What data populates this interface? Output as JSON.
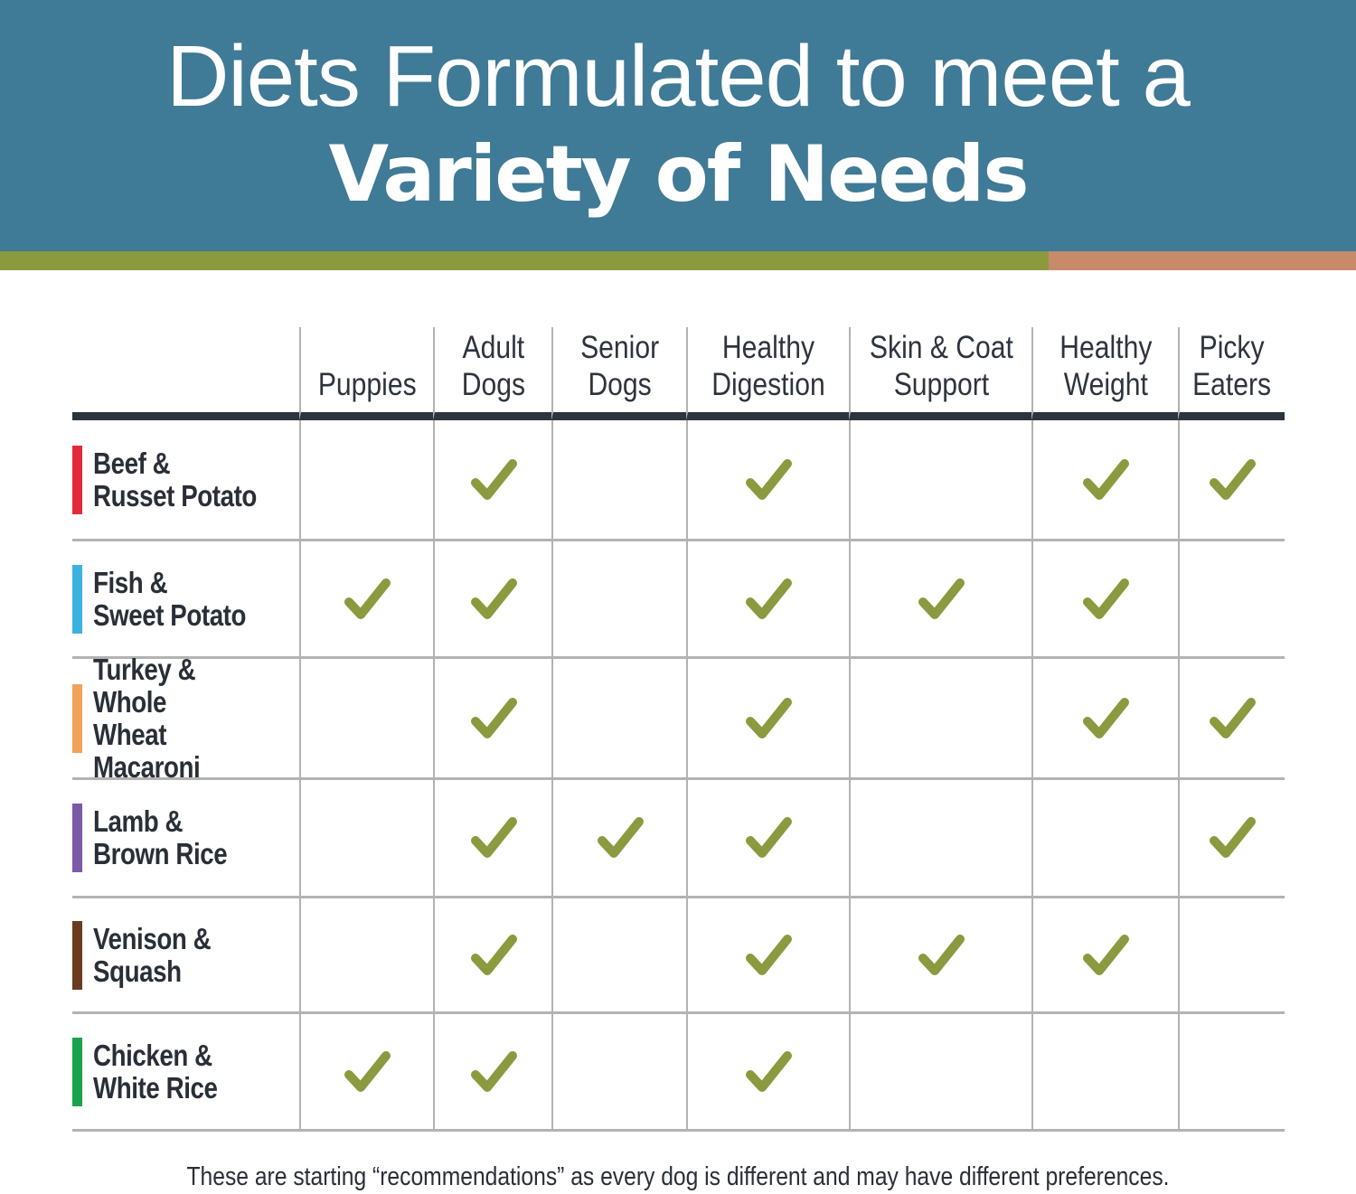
{
  "header": {
    "title_line1": "Diets Formulated to meet a",
    "title_line2": "Variety of Needs",
    "banner_color": "#3f7a96",
    "stripe_colors": [
      "#8c9a3f",
      "#c78b69"
    ]
  },
  "table": {
    "columns": [
      "Puppies",
      "Adult\nDogs",
      "Senior\nDogs",
      "Healthy\nDigestion",
      "Skin & Coat\nSupport",
      "Healthy\nWeight",
      "Picky\nEaters"
    ],
    "check_color": "#8c9a3f",
    "check_icon": "checkmark-icon",
    "rows": [
      {
        "label": "Beef &\nRusset Potato",
        "color": "#e12b3a",
        "checks": [
          false,
          true,
          false,
          true,
          false,
          true,
          true
        ]
      },
      {
        "label": "Fish &\nSweet Potato",
        "color": "#3db1e0",
        "checks": [
          true,
          true,
          false,
          true,
          true,
          true,
          false
        ]
      },
      {
        "label": "Turkey & Whole\nWheat Macaroni",
        "color": "#f0a15a",
        "checks": [
          false,
          true,
          false,
          true,
          false,
          true,
          true
        ]
      },
      {
        "label": "Lamb &\nBrown Rice",
        "color": "#7b5aa6",
        "checks": [
          false,
          true,
          true,
          true,
          false,
          false,
          true
        ]
      },
      {
        "label": "Venison &\nSquash",
        "color": "#6b3a1f",
        "checks": [
          false,
          true,
          false,
          true,
          true,
          true,
          false
        ]
      },
      {
        "label": "Chicken &\nWhite Rice",
        "color": "#1aa34a",
        "checks": [
          true,
          true,
          false,
          true,
          false,
          false,
          false
        ]
      }
    ]
  },
  "footnote": "These are starting “recommendations” as every dog is different and may have different preferences."
}
